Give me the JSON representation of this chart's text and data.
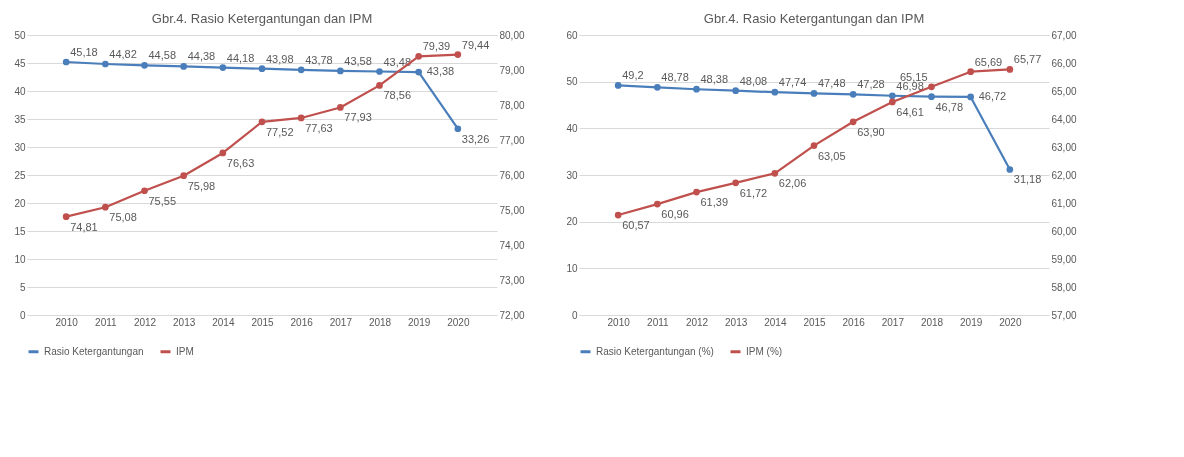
{
  "chart_data": [
    {
      "type": "line",
      "title": "Gbr.4. Rasio Ketergantungan dan IPM",
      "categories": [
        "2010",
        "2011",
        "2012",
        "2013",
        "2014",
        "2015",
        "2016",
        "2017",
        "2018",
        "2019",
        "2020"
      ],
      "series": [
        {
          "name": "Rasio Ketergantungan",
          "color": "#4a7ebb",
          "values": [
            45.18,
            44.82,
            44.58,
            44.38,
            44.18,
            43.98,
            43.78,
            43.58,
            43.48,
            43.38,
            33.26
          ],
          "value_labels": [
            "45,18",
            "44,82",
            "44,58",
            "44,38",
            "44,18",
            "43,98",
            "43,78",
            "43,58",
            "43,48",
            "43,38",
            "33,26"
          ]
        },
        {
          "name": "IPM",
          "color": "#c0504d",
          "axis": "y2",
          "values": [
            74.81,
            75.08,
            75.55,
            75.98,
            76.63,
            77.52,
            77.63,
            77.93,
            78.56,
            79.39,
            79.44
          ],
          "value_labels": [
            "74,81",
            "75,08",
            "75,55",
            "75,98",
            "76,63",
            "77,52",
            "77,63",
            "77,93",
            "78,56",
            "79,39",
            "79,44"
          ]
        }
      ],
      "ylim": [
        0,
        50
      ],
      "yticks": [
        0,
        5,
        10,
        15,
        20,
        25,
        30,
        35,
        40,
        45,
        50
      ],
      "y2lim": [
        72,
        80
      ],
      "y2ticks": [
        {
          "value": 72,
          "label": "72,00"
        },
        {
          "value": 73,
          "label": "73,00"
        },
        {
          "value": 74,
          "label": "74,00"
        },
        {
          "value": 75,
          "label": "75,00"
        },
        {
          "value": 76,
          "label": "76,00"
        },
        {
          "value": 77,
          "label": "77,00"
        },
        {
          "value": 78,
          "label": "78,00"
        },
        {
          "value": 79,
          "label": "79,00"
        },
        {
          "value": 80,
          "label": "80,00"
        }
      ],
      "grid": "y",
      "legend": "bottom",
      "marker": "circle",
      "line_style": "solid"
    },
    {
      "type": "line",
      "title": "Gbr.4. Rasio Ketergantungan dan IPM",
      "categories": [
        "2010",
        "2011",
        "2012",
        "2013",
        "2014",
        "2015",
        "2016",
        "2017",
        "2018",
        "2019",
        "2020"
      ],
      "series": [
        {
          "name": "Rasio Ketergantungan (%)",
          "color": "#4a7ebb",
          "values": [
            49.2,
            48.78,
            48.38,
            48.08,
            47.74,
            47.48,
            47.28,
            46.98,
            46.78,
            46.72,
            31.18
          ],
          "value_labels": [
            "49,2",
            "48,78",
            "48,38",
            "48,08",
            "47,74",
            "47,48",
            "47,28",
            "46,98",
            "46,78",
            "46,72",
            "31,18"
          ]
        },
        {
          "name": "IPM (%)",
          "color": "#c0504d",
          "axis": "y2",
          "values": [
            60.57,
            60.96,
            61.39,
            61.72,
            62.06,
            63.05,
            63.9,
            64.61,
            65.15,
            65.69,
            65.77
          ],
          "value_labels": [
            "60,57",
            "60,96",
            "61,39",
            "61,72",
            "62,06",
            "63,05",
            "63,90",
            "64,61",
            "65,15",
            "65,69",
            "65,77"
          ]
        }
      ],
      "ylim": [
        0,
        60
      ],
      "yticks": [
        0,
        10,
        20,
        30,
        40,
        50,
        60
      ],
      "y2lim": [
        57,
        67
      ],
      "y2ticks": [
        {
          "value": 57,
          "label": "57,00"
        },
        {
          "value": 58,
          "label": "58,00"
        },
        {
          "value": 59,
          "label": "59,00"
        },
        {
          "value": 60,
          "label": "60,00"
        },
        {
          "value": 61,
          "label": "61,00"
        },
        {
          "value": 62,
          "label": "62,00"
        },
        {
          "value": 63,
          "label": "63,00"
        },
        {
          "value": 64,
          "label": "64,00"
        },
        {
          "value": 65,
          "label": "65,00"
        },
        {
          "value": 66,
          "label": "66,00"
        },
        {
          "value": 67,
          "label": "67,00"
        }
      ],
      "grid": "y",
      "legend": "bottom",
      "marker": "circle",
      "line_style": "solid"
    }
  ]
}
